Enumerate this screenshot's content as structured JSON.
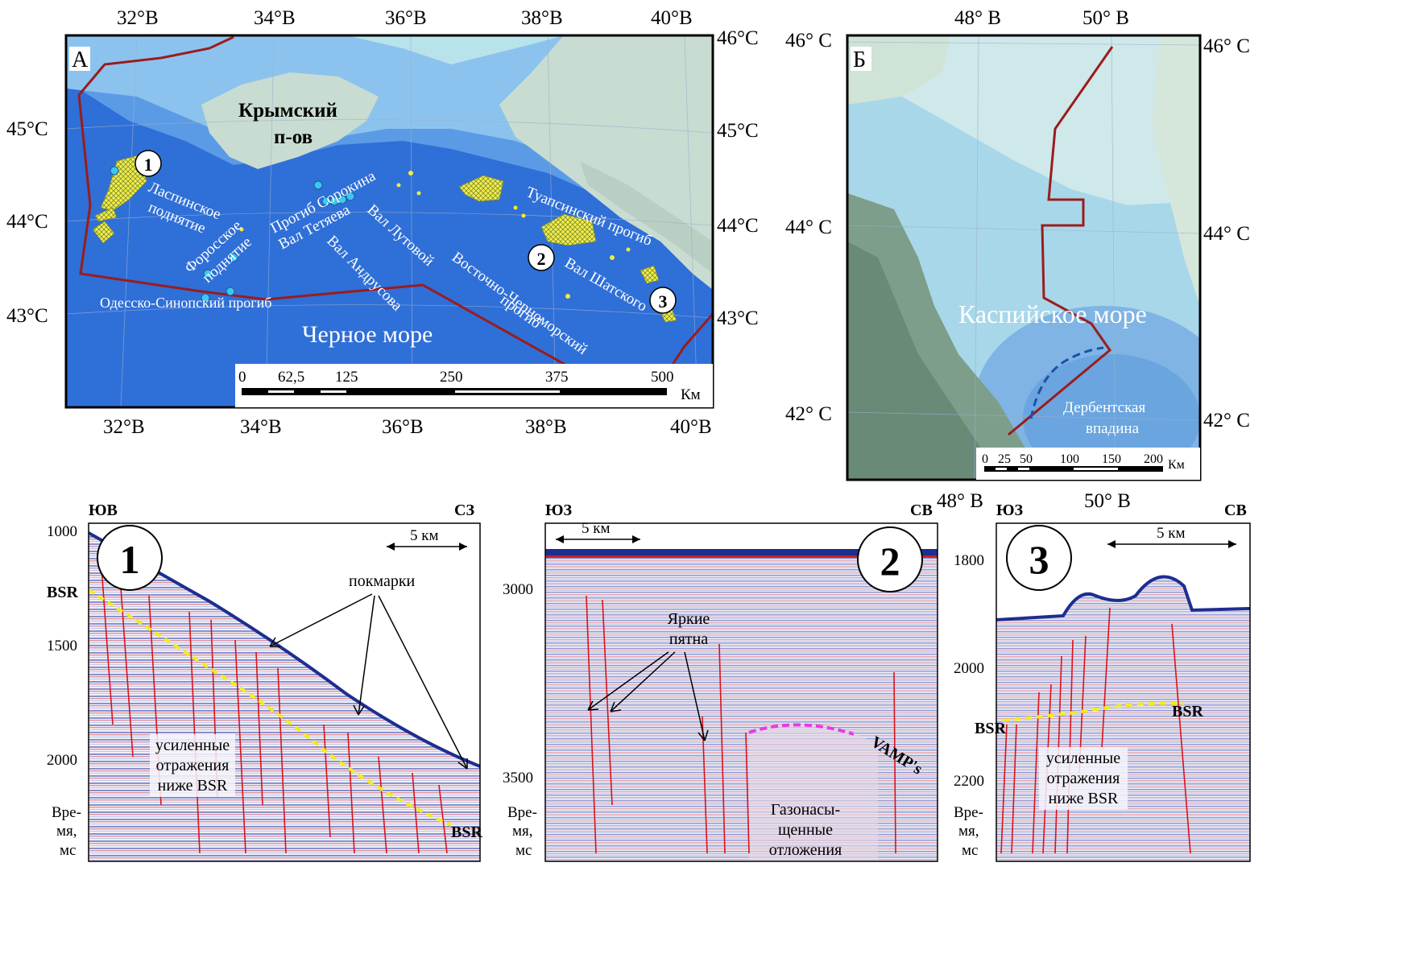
{
  "panel_a": {
    "letter": "А",
    "lon_top": [
      "32°В",
      "34°В",
      "36°В",
      "38°В",
      "40°В"
    ],
    "lon_bottom": [
      "32°В",
      "34°В",
      "36°В",
      "38°В",
      "40°В"
    ],
    "lat_left": [
      "45°С",
      "44°С",
      "43°С"
    ],
    "lat_right": [
      "46°С",
      "45°С",
      "44°С",
      "43°С"
    ],
    "peninsula_line1": "Крымский",
    "peninsula_line2": "п-ов",
    "sea": "Черное море",
    "features": {
      "laspi1": "Ласпинское",
      "laspi2": "поднятие",
      "foros1": "Форосское",
      "foros2": "поднятие",
      "sorokin": "Прогиб Сорокина",
      "tetyaev": "Вал Тетяева",
      "lutovoy": "Вал Лутовой",
      "andrusov": "Вал Андрусова",
      "east_bs1": "Восточно-Черноморский",
      "east_bs2": "прогиб",
      "tuapse": "Туапсинский прогиб",
      "shatsky": "Вал Шатского",
      "odessa": "Одесско-Синопский прогиб"
    },
    "markers": [
      "1",
      "2",
      "3"
    ],
    "scale_ticks": [
      "0",
      "62,5",
      "125",
      "250",
      "375",
      "500"
    ],
    "scale_unit": "Км",
    "colors": {
      "deep": "#2f6fd8",
      "mid": "#5b9be6",
      "shelf": "#8cc3ee",
      "land": "#c8dcd2",
      "border": "#9a1c1c",
      "seep": "#f2ec3c"
    }
  },
  "panel_b": {
    "letter": "Б",
    "lon_top": [
      "48° В",
      "50° В"
    ],
    "lon_bottom": [
      "48° В",
      "50° В"
    ],
    "lat_left": [
      "46° С",
      "44° С",
      "42° С"
    ],
    "lat_right": [
      "46° С",
      "44° С",
      "42° С"
    ],
    "sea": "Каспийское море",
    "basin1": "Дербентская",
    "basin2": "впадина",
    "scale_ticks": [
      "0",
      "25",
      "50",
      "100",
      "150",
      "200"
    ],
    "scale_unit": "Км"
  },
  "profile_1": {
    "number": "1",
    "dir_left": "ЮВ",
    "dir_right": "СЗ",
    "scale_label": "5 км",
    "y_ticks": [
      "1000",
      "1500",
      "2000"
    ],
    "axis_title": [
      "Вре-",
      "мя,",
      "мс"
    ],
    "bsr_left": "BSR",
    "bsr_right": "BSR",
    "pockmarks": "покмарки",
    "enhanced": [
      "усиленные",
      "отражения",
      "ниже BSR"
    ]
  },
  "profile_2": {
    "number": "2",
    "dir_left": "ЮЗ",
    "dir_right": "СВ",
    "scale_label": "5 км",
    "y_ticks": [
      "3000",
      "3500"
    ],
    "axis_title": [
      "Вре-",
      "мя,",
      "мс"
    ],
    "bright": [
      "Яркие",
      "пятна"
    ],
    "vamps": "VAMP's",
    "gas": [
      "Газонасы-",
      "щенные",
      "отложения"
    ]
  },
  "profile_3": {
    "number": "3",
    "dir_left": "ЮЗ",
    "dir_right": "СВ",
    "scale_label": "5 км",
    "y_ticks": [
      "1800",
      "2000",
      "2200"
    ],
    "axis_title": [
      "Вре-",
      "мя,",
      "мс"
    ],
    "bsr_left": "BSR",
    "bsr_right": "BSR",
    "enhanced": [
      "усиленные",
      "отражения",
      "ниже BSR"
    ]
  }
}
